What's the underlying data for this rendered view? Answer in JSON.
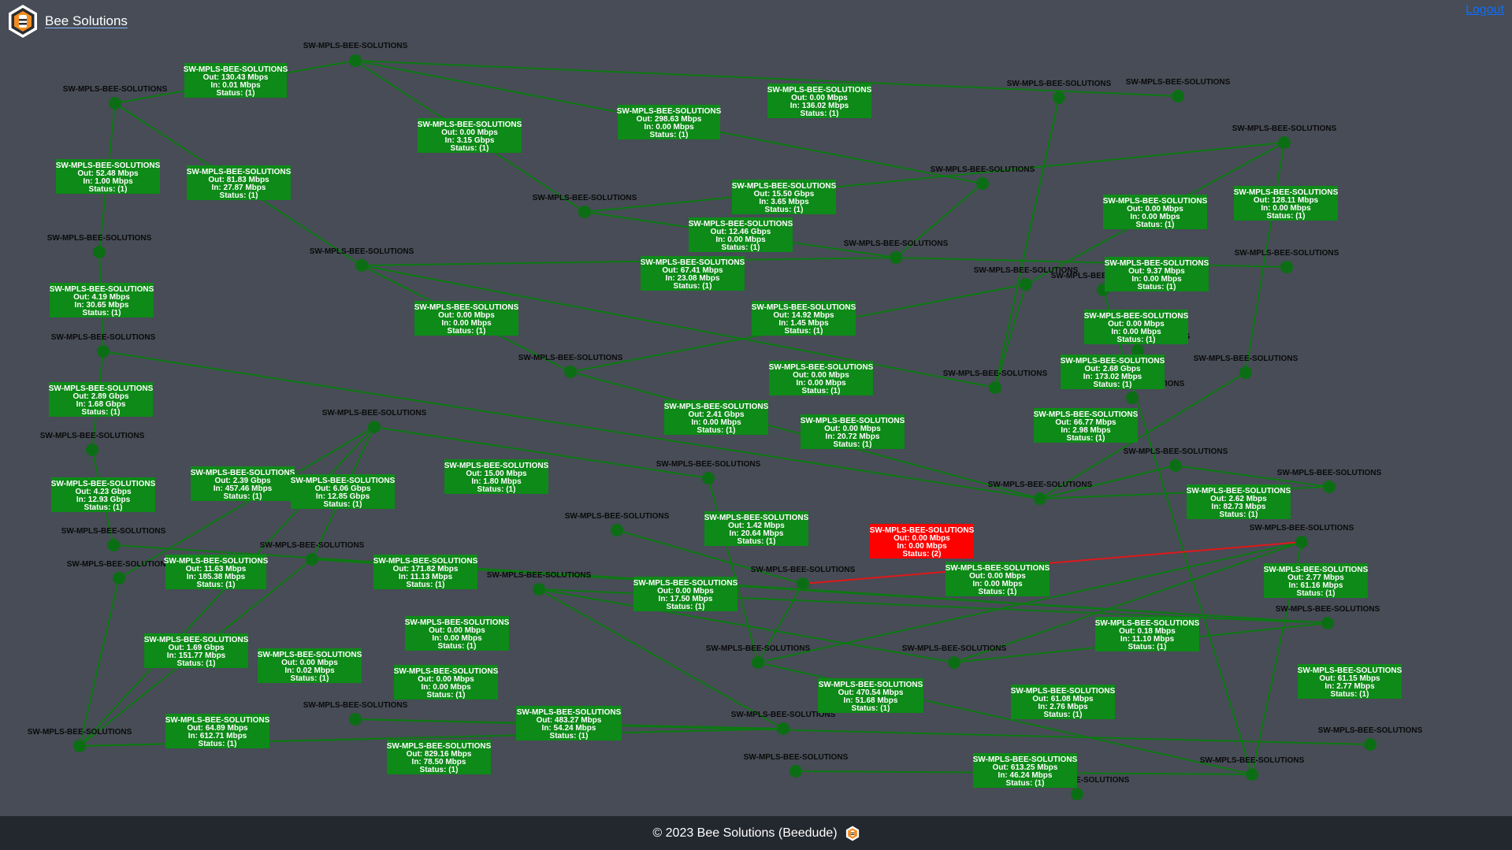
{
  "app": {
    "brand_name": "Bee Solutions",
    "logout_label": "Logout",
    "footer_text": "© 2023 Bee Solutions (Beedude)",
    "logo_icon": "bee-solutions-hexagon-logo"
  },
  "colors": {
    "background": "#474c56",
    "link_up": "#0c7a12",
    "link_down": "#e01818",
    "box_up": "#0d8a17",
    "box_down": "#ff0000",
    "node": "#0c6e14",
    "footer_bg": "#23272e",
    "logout_link": "#0d6efd"
  },
  "map": {
    "nodes": [
      {
        "label": "SW-MPLS-BEE-SOLUTIONS"
      },
      {
        "label": "SW-MPLS-BEE-SOLUTIONS"
      },
      {
        "label": "SW-MPLS-BEE-SOLUTIONS"
      },
      {
        "label": "SW-MPLS-BEE-SOLUTIONS"
      },
      {
        "label": "SW-MPLS-BEE-SOLUTIONS"
      },
      {
        "label": "SW-MPLS-BEE-SOLUTIONS"
      },
      {
        "label": "SW-MPLS-BEE-SOLUTIONS"
      },
      {
        "label": "SW-MPLS-BEE-SOLUTIONS"
      },
      {
        "label": "SW-MPLS-BEE-SOLUTIONS"
      },
      {
        "label": "SW-MPLS-BEE-SOLUTIONS"
      },
      {
        "label": "SW-MPLS-BEE-SOLUTIONS"
      },
      {
        "label": "SW-MPLS-BEE-SOLUTIONS"
      },
      {
        "label": "SW-MPLS-BEE-SOLUTIONS"
      },
      {
        "label": "SW-MPLS-BEE-SOLUTIONS"
      },
      {
        "label": "SW-MPLS-BEE-SOLUTIONS"
      },
      {
        "label": "SW-MPLS-BEE-SOLUTIONS"
      },
      {
        "label": "SW-MPLS-BEE-SOLUTIONS"
      },
      {
        "label": "SW-MPLS-BEE-SOLUTIONS"
      },
      {
        "label": "SW-MPLS-BEE-SOLUTIONS"
      },
      {
        "label": "SW-MPLS-BEE-SOLUTIONS"
      },
      {
        "label": "SW-MPLS-BEE-SOLUTIONS"
      },
      {
        "label": "SW-MPLS-BEE-SOLUTIONS"
      },
      {
        "label": "SW-MPLS-BEE-SOLUTIONS"
      },
      {
        "label": "SW-MPLS-BEE-SOLUTIONS"
      },
      {
        "label": "SW-MPLS-BEE-SOLUTIONS"
      },
      {
        "label": "SW-MPLS-BEE-SOLUTIONS"
      },
      {
        "label": "SW-MPLS-BEE-SOLUTIONS"
      },
      {
        "label": "SW-MPLS-BEE-SOLUTIONS"
      },
      {
        "label": "SW-MPLS-BEE-SOLUTIONS"
      },
      {
        "label": "SW-MPLS-BEE-SOLUTIONS"
      },
      {
        "label": "SW-MPLS-BEE-SOLUTIONS"
      },
      {
        "label": "SW-MPLS-BEE-SOLUTIONS"
      },
      {
        "label": "SW-MPLS-BEE-SOLUTIONS"
      },
      {
        "label": "SW-MPLS-BEE-SOLUTIONS"
      },
      {
        "label": "SW-MPLS-BEE-SOLUTIONS"
      },
      {
        "label": "SW-MPLS-BEE-SOLUTIONS"
      },
      {
        "label": "SW-MPLS-BEE-SOLUTIONS"
      },
      {
        "label": "SW-MPLS-BEE-SOLUTIONS"
      },
      {
        "label": "SW-MPLS-BEE-SOLUTIONS"
      },
      {
        "label": "SW-MPLS-BEE-SOLUTIONS"
      },
      {
        "label": "SW-MPLS-BEE-SOLUTIONS"
      },
      {
        "label": "SW-MPLS-BEE-SOLUTIONS"
      },
      {
        "label": "SW-MPLS-BEE-SOLUTIONS"
      }
    ],
    "links": [
      {
        "name": "SW-MPLS-BEE-SOLUTIONS",
        "out": "Out: 130.43 Mbps",
        "in": "In: 0.01 Mbps",
        "status": "Status: (1)",
        "state": "up"
      },
      {
        "name": "SW-MPLS-BEE-SOLUTIONS",
        "out": "Out: 0.00 Mbps",
        "in": "In: 136.02 Mbps",
        "status": "Status: (1)",
        "state": "up"
      },
      {
        "name": "SW-MPLS-BEE-SOLUTIONS",
        "out": "Out: 298.63 Mbps",
        "in": "In: 0.00 Mbps",
        "status": "Status: (1)",
        "state": "up"
      },
      {
        "name": "SW-MPLS-BEE-SOLUTIONS",
        "out": "Out: 0.00 Mbps",
        "in": "In: 3.15 Gbps",
        "status": "Status: (1)",
        "state": "up"
      },
      {
        "name": "SW-MPLS-BEE-SOLUTIONS",
        "out": "Out: 52.48 Mbps",
        "in": "In: 1.00 Mbps",
        "status": "Status: (1)",
        "state": "up"
      },
      {
        "name": "SW-MPLS-BEE-SOLUTIONS",
        "out": "Out: 81.83 Mbps",
        "in": "In: 27.87 Mbps",
        "status": "Status: (1)",
        "state": "up"
      },
      {
        "name": "SW-MPLS-BEE-SOLUTIONS",
        "out": "Out: 15.50 Gbps",
        "in": "In: 3.65 Mbps",
        "status": "Status: (1)",
        "state": "up"
      },
      {
        "name": "SW-MPLS-BEE-SOLUTIONS",
        "out": "Out: 12.46 Gbps",
        "in": "In: 0.00 Mbps",
        "status": "Status: (1)",
        "state": "up"
      },
      {
        "name": "SW-MPLS-BEE-SOLUTIONS",
        "out": "Out: 0.00 Mbps",
        "in": "In: 0.00 Mbps",
        "status": "Status: (1)",
        "state": "up"
      },
      {
        "name": "SW-MPLS-BEE-SOLUTIONS",
        "out": "Out: 128.11 Mbps",
        "in": "In: 0.00 Mbps",
        "status": "Status: (1)",
        "state": "up"
      },
      {
        "name": "SW-MPLS-BEE-SOLUTIONS",
        "out": "Out: 67.41 Mbps",
        "in": "In: 23.08 Mbps",
        "status": "Status: (1)",
        "state": "up"
      },
      {
        "name": "SW-MPLS-BEE-SOLUTIONS",
        "out": "Out: 9.37 Mbps",
        "in": "In: 0.00 Mbps",
        "status": "Status: (1)",
        "state": "up"
      },
      {
        "name": "SW-MPLS-BEE-SOLUTIONS",
        "out": "Out: 4.19 Mbps",
        "in": "In: 30.65 Mbps",
        "status": "Status: (1)",
        "state": "up"
      },
      {
        "name": "SW-MPLS-BEE-SOLUTIONS",
        "out": "Out: 0.00 Mbps",
        "in": "In: 0.00 Mbps",
        "status": "Status: (1)",
        "state": "up"
      },
      {
        "name": "SW-MPLS-BEE-SOLUTIONS",
        "out": "Out: 14.92 Mbps",
        "in": "In: 1.45 Mbps",
        "status": "Status: (1)",
        "state": "up"
      },
      {
        "name": "SW-MPLS-BEE-SOLUTIONS",
        "out": "Out: 0.00 Mbps",
        "in": "In: 0.00 Mbps",
        "status": "Status: (1)",
        "state": "up"
      },
      {
        "name": "SW-MPLS-BEE-SOLUTIONS",
        "out": "Out: 2.68 Gbps",
        "in": "In: 173.02 Mbps",
        "status": "Status: (1)",
        "state": "up"
      },
      {
        "name": "SW-MPLS-BEE-SOLUTIONS",
        "out": "Out: 0.00 Mbps",
        "in": "In: 0.00 Mbps",
        "status": "Status: (1)",
        "state": "up"
      },
      {
        "name": "SW-MPLS-BEE-SOLUTIONS",
        "out": "Out: 2.89 Gbps",
        "in": "In: 1.68 Gbps",
        "status": "Status: (1)",
        "state": "up"
      },
      {
        "name": "SW-MPLS-BEE-SOLUTIONS",
        "out": "Out: 2.41 Gbps",
        "in": "In: 0.00 Mbps",
        "status": "Status: (1)",
        "state": "up"
      },
      {
        "name": "SW-MPLS-BEE-SOLUTIONS",
        "out": "Out: 0.00 Mbps",
        "in": "In: 20.72 Mbps",
        "status": "Status: (1)",
        "state": "up"
      },
      {
        "name": "SW-MPLS-BEE-SOLUTIONS",
        "out": "Out: 66.77 Mbps",
        "in": "In: 2.98 Mbps",
        "status": "Status: (1)",
        "state": "up"
      },
      {
        "name": "SW-MPLS-BEE-SOLUTIONS",
        "out": "Out: 2.39 Gbps",
        "in": "In: 457.46 Mbps",
        "status": "Status: (1)",
        "state": "up"
      },
      {
        "name": "SW-MPLS-BEE-SOLUTIONS",
        "out": "Out: 6.06 Gbps",
        "in": "In: 12.85 Gbps",
        "status": "Status: (1)",
        "state": "up"
      },
      {
        "name": "SW-MPLS-BEE-SOLUTIONS",
        "out": "Out: 15.00 Mbps",
        "in": "In: 1.80 Mbps",
        "status": "Status: (1)",
        "state": "up"
      },
      {
        "name": "SW-MPLS-BEE-SOLUTIONS",
        "out": "Out: 4.23 Gbps",
        "in": "In: 12.93 Gbps",
        "status": "Status: (1)",
        "state": "up"
      },
      {
        "name": "SW-MPLS-BEE-SOLUTIONS",
        "out": "Out: 2.62 Mbps",
        "in": "In: 82.73 Mbps",
        "status": "Status: (1)",
        "state": "up"
      },
      {
        "name": "SW-MPLS-BEE-SOLUTIONS",
        "out": "Out: 1.42 Mbps",
        "in": "In: 20.64 Mbps",
        "status": "Status: (1)",
        "state": "up"
      },
      {
        "name": "SW-MPLS-BEE-SOLUTIONS",
        "out": "Out: 0.00 Mbps",
        "in": "In: 0.00 Mbps",
        "status": "Status: (2)",
        "state": "down"
      },
      {
        "name": "SW-MPLS-BEE-SOLUTIONS",
        "out": "Out: 11.63 Mbps",
        "in": "In: 185.38 Mbps",
        "status": "Status: (1)",
        "state": "up"
      },
      {
        "name": "SW-MPLS-BEE-SOLUTIONS",
        "out": "Out: 171.82 Mbps",
        "in": "In: 11.13 Mbps",
        "status": "Status: (1)",
        "state": "up"
      },
      {
        "name": "SW-MPLS-BEE-SOLUTIONS",
        "out": "Out: 0.00 Mbps",
        "in": "In: 17.50 Mbps",
        "status": "Status: (1)",
        "state": "up"
      },
      {
        "name": "SW-MPLS-BEE-SOLUTIONS",
        "out": "Out: 0.00 Mbps",
        "in": "In: 0.00 Mbps",
        "status": "Status: (1)",
        "state": "up"
      },
      {
        "name": "SW-MPLS-BEE-SOLUTIONS",
        "out": "Out: 2.77 Mbps",
        "in": "In: 61.16 Mbps",
        "status": "Status: (1)",
        "state": "up"
      },
      {
        "name": "SW-MPLS-BEE-SOLUTIONS",
        "out": "Out: 0.00 Mbps",
        "in": "In: 0.00 Mbps",
        "status": "Status: (1)",
        "state": "up"
      },
      {
        "name": "SW-MPLS-BEE-SOLUTIONS",
        "out": "Out: 0.18 Mbps",
        "in": "In: 11.10 Mbps",
        "status": "Status: (1)",
        "state": "up"
      },
      {
        "name": "SW-MPLS-BEE-SOLUTIONS",
        "out": "Out: 1.69 Gbps",
        "in": "In: 151.77 Mbps",
        "status": "Status: (1)",
        "state": "up"
      },
      {
        "name": "SW-MPLS-BEE-SOLUTIONS",
        "out": "Out: 0.00 Mbps",
        "in": "In: 0.02 Mbps",
        "status": "Status: (1)",
        "state": "up"
      },
      {
        "name": "SW-MPLS-BEE-SOLUTIONS",
        "out": "Out: 0.00 Mbps",
        "in": "In: 0.00 Mbps",
        "status": "Status: (1)",
        "state": "up"
      },
      {
        "name": "SW-MPLS-BEE-SOLUTIONS",
        "out": "Out: 470.54 Mbps",
        "in": "In: 51.68 Mbps",
        "status": "Status: (1)",
        "state": "up"
      },
      {
        "name": "SW-MPLS-BEE-SOLUTIONS",
        "out": "Out: 61.08 Mbps",
        "in": "In: 2.76 Mbps",
        "status": "Status: (1)",
        "state": "up"
      },
      {
        "name": "SW-MPLS-BEE-SOLUTIONS",
        "out": "Out: 61.15 Mbps",
        "in": "In: 2.77 Mbps",
        "status": "Status: (1)",
        "state": "up"
      },
      {
        "name": "SW-MPLS-BEE-SOLUTIONS",
        "out": "Out: 64.89 Mbps",
        "in": "In: 612.71 Mbps",
        "status": "Status: (1)",
        "state": "up"
      },
      {
        "name": "SW-MPLS-BEE-SOLUTIONS",
        "out": "Out: 483.27 Mbps",
        "in": "In: 54.24 Mbps",
        "status": "Status: (1)",
        "state": "up"
      },
      {
        "name": "SW-MPLS-BEE-SOLUTIONS",
        "out": "Out: 829.16 Mbps",
        "in": "In: 78.50 Mbps",
        "status": "Status: (1)",
        "state": "up"
      },
      {
        "name": "SW-MPLS-BEE-SOLUTIONS",
        "out": "Out: 613.25 Mbps",
        "in": "In: 46.24 Mbps",
        "status": "Status: (1)",
        "state": "up"
      }
    ]
  }
}
